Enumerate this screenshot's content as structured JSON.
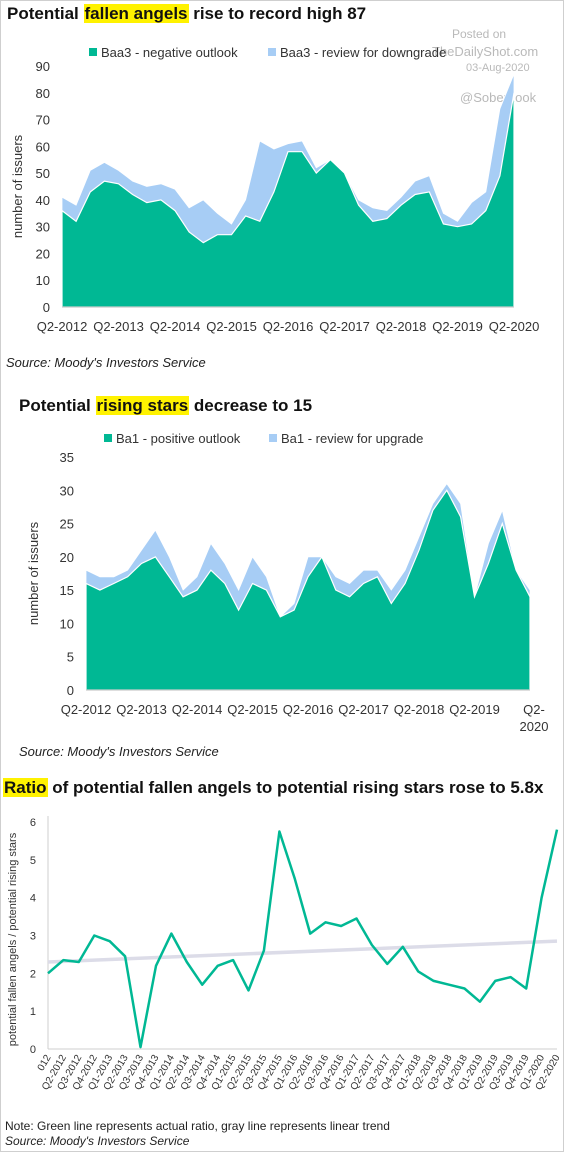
{
  "watermark": {
    "line1": "Posted on",
    "line2": "TheDailyShot.com",
    "line3": "03-Aug-2020",
    "line4": "@SoberLook"
  },
  "colors": {
    "green": "#00b894",
    "lightblue": "#a7cdf5",
    "trend": "#dcdce8",
    "highlight": "#fff200"
  },
  "chart1": {
    "title_pre": "Potential ",
    "title_hl": "fallen angels",
    "title_post": " rise to record high 87",
    "source": "Source: Moody's Investors Service"
  },
  "chart2": {
    "title_pre": "Potential ",
    "title_hl": "rising stars",
    "title_post": " decrease to 15",
    "source": "Source: Moody's Investors Service"
  },
  "chart3": {
    "title_hl": "Ratio",
    "title_post": " of potential fallen angels to potential rising stars rose to 5.8x",
    "note": "Note: Green line represents actual ratio, gray line represents linear trend",
    "source": "Source: Moody's Investors Service"
  },
  "chart_data": [
    {
      "type": "area",
      "title": "Potential fallen angels rise to record high 87",
      "ylabel": "number of issuers",
      "ylim": [
        0,
        90
      ],
      "yticks": [
        0,
        10,
        20,
        30,
        40,
        50,
        60,
        70,
        80,
        90
      ],
      "x_tick_labels": [
        "Q2-2012",
        "Q2-2013",
        "Q2-2014",
        "Q2-2015",
        "Q2-2016",
        "Q2-2017",
        "Q2-2018",
        "Q2-2019",
        "Q2-2020"
      ],
      "legend_position": "top",
      "series": [
        {
          "name": "Baa3 - negative outlook",
          "color": "#00b894",
          "values": [
            36,
            32,
            43,
            47,
            46,
            42,
            39,
            40,
            36,
            28,
            24,
            27,
            27,
            34,
            32,
            43,
            58,
            58,
            50,
            55,
            50,
            38,
            32,
            33,
            38,
            42,
            43,
            31,
            30,
            31,
            36,
            49,
            80
          ]
        },
        {
          "name": "Baa3 - review for downgrade",
          "color": "#a7cdf5",
          "values": [
            5,
            6,
            8,
            7,
            5,
            5,
            6,
            6,
            8,
            9,
            16,
            8,
            4,
            6,
            30,
            16,
            3,
            4,
            2,
            0,
            0,
            2,
            5,
            3,
            3,
            5,
            6,
            4,
            2,
            8,
            7,
            25,
            7
          ]
        }
      ]
    },
    {
      "type": "area",
      "title": "Potential rising stars decrease to 15",
      "ylabel": "number of issuers",
      "ylim": [
        0,
        35
      ],
      "yticks": [
        0,
        5,
        10,
        15,
        20,
        25,
        30,
        35
      ],
      "x_tick_labels": [
        "Q2-2012",
        "Q2-2013",
        "Q2-2014",
        "Q2-2015",
        "Q2-2016",
        "Q2-2017",
        "Q2-2018",
        "Q2-2019",
        "Q2-2020"
      ],
      "legend_position": "top",
      "series": [
        {
          "name": "Ba1 - positive outlook",
          "color": "#00b894",
          "values": [
            16,
            15,
            16,
            17,
            19,
            20,
            17,
            14,
            15,
            18,
            16,
            12,
            16,
            15,
            11,
            12,
            17,
            20,
            15,
            14,
            16,
            17,
            13,
            16,
            21,
            27,
            30,
            26,
            14,
            19,
            25,
            18,
            14
          ]
        },
        {
          "name": "Ba1 - review for upgrade",
          "color": "#a7cdf5",
          "values": [
            2,
            2,
            1,
            1,
            2,
            4,
            3,
            1,
            2,
            4,
            3,
            3,
            4,
            2,
            0,
            1,
            3,
            0,
            2,
            2,
            2,
            1,
            2,
            2,
            2,
            1,
            1,
            2,
            0,
            3,
            2,
            0,
            1
          ]
        }
      ]
    },
    {
      "type": "line",
      "title": "Ratio of potential fallen angels to potential rising stars rose to 5.8x",
      "ylabel": "potential fallen angels / potential rising stars",
      "ylim": [
        0,
        6
      ],
      "yticks": [
        0,
        1,
        2,
        3,
        4,
        5,
        6
      ],
      "x_tick_labels": [
        "Q2-2012",
        "Q3-2012",
        "Q4-2012",
        "Q1-2013",
        "Q2-2013",
        "Q3-2013",
        "Q4-2013",
        "Q1-2014",
        "Q2-2014",
        "Q3-2014",
        "Q4-2014",
        "Q1-2015",
        "Q2-2015",
        "Q3-2015",
        "Q4-2015",
        "Q1-2016",
        "Q2-2016",
        "Q3-2016",
        "Q4-2016",
        "Q1-2017",
        "Q2-2017",
        "Q3-2017",
        "Q4-2017",
        "Q1-2018",
        "Q2-2018",
        "Q3-2018",
        "Q4-2018",
        "Q1-2019",
        "Q2-2019",
        "Q3-2019",
        "Q4-2019",
        "Q1-2020",
        "Q2-2020"
      ],
      "first_tick_label": "Q1-2012",
      "series": [
        {
          "name": "actual ratio",
          "color": "#00b894",
          "values": [
            2.0,
            2.35,
            2.3,
            3.0,
            2.85,
            2.45,
            0.05,
            2.2,
            3.05,
            2.3,
            1.7,
            2.2,
            2.35,
            1.55,
            2.6,
            5.75,
            4.5,
            3.05,
            3.35,
            3.25,
            3.45,
            2.75,
            2.25,
            2.7,
            2.05,
            1.8,
            1.7,
            1.6,
            1.25,
            1.8,
            1.9,
            1.6,
            4.0,
            5.8
          ]
        },
        {
          "name": "linear trend",
          "color": "#dcdce8",
          "values": [
            2.3,
            2.85
          ]
        }
      ]
    }
  ]
}
